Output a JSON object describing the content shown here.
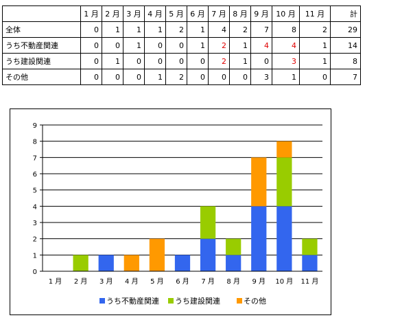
{
  "table": {
    "headers": [
      "",
      "1 月",
      "2 月",
      "3 月",
      "4 月",
      "5 月",
      "6 月",
      "7 月",
      "8 月",
      "9 月",
      "10 月",
      "11 月",
      "計"
    ],
    "rows": [
      {
        "label": "全体",
        "cells": [
          "0",
          "1",
          "1",
          "1",
          "2",
          "1",
          "4",
          "2",
          "7",
          "8",
          "2",
          "29"
        ]
      },
      {
        "label": "うち不動産関連",
        "cells": [
          "0",
          "0",
          "1",
          "0",
          "0",
          "1",
          "2",
          "1",
          "4",
          "4",
          "1",
          "14"
        ]
      },
      {
        "label": "うち建設関連",
        "cells": [
          "0",
          "1",
          "0",
          "0",
          "0",
          "0",
          "2",
          "1",
          "0",
          "3",
          "1",
          "8"
        ]
      },
      {
        "label": "その他",
        "cells": [
          "0",
          "0",
          "0",
          "1",
          "2",
          "0",
          "0",
          "0",
          "3",
          "1",
          "0",
          "7"
        ]
      }
    ],
    "highlight_color": "#e00000",
    "highlights": [
      {
        "row": 1,
        "col": 6
      },
      {
        "row": 1,
        "col": 8
      },
      {
        "row": 1,
        "col": 9
      },
      {
        "row": 2,
        "col": 6
      },
      {
        "row": 2,
        "col": 9
      }
    ]
  },
  "chart_data": {
    "type": "bar",
    "stacked": true,
    "categories": [
      "1 月",
      "2 月",
      "3 月",
      "4 月",
      "5 月",
      "6 月",
      "7 月",
      "8 月",
      "9 月",
      "10 月",
      "11 月"
    ],
    "series": [
      {
        "name": "うち不動産関連",
        "color": "#3366ee",
        "values": [
          0,
          0,
          1,
          0,
          0,
          1,
          2,
          1,
          4,
          4,
          1
        ]
      },
      {
        "name": "うち建設関連",
        "color": "#99cc00",
        "values": [
          0,
          1,
          0,
          0,
          0,
          0,
          2,
          1,
          0,
          3,
          1
        ]
      },
      {
        "name": "その他",
        "color": "#ff9900",
        "values": [
          0,
          0,
          0,
          1,
          2,
          0,
          0,
          0,
          3,
          1,
          0
        ]
      }
    ],
    "ylim": [
      0,
      9
    ],
    "yticks": [
      "0",
      "1",
      "2",
      "3",
      "4",
      "5",
      "6",
      "7",
      "8",
      "9"
    ],
    "grid": true,
    "legend_position": "bottom"
  }
}
